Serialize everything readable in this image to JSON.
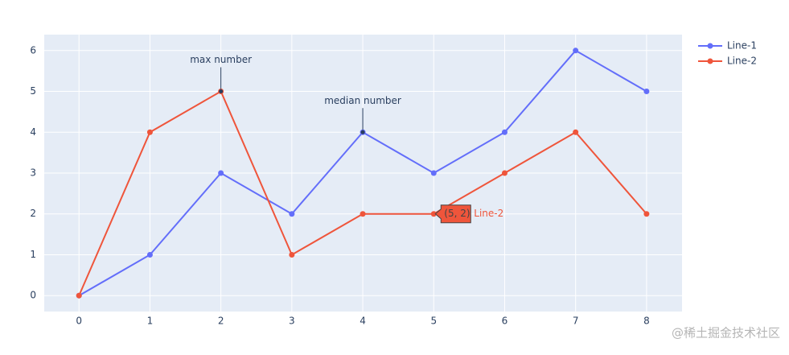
{
  "chart_data": {
    "type": "line",
    "x": [
      0,
      1,
      2,
      3,
      4,
      5,
      6,
      7,
      8
    ],
    "series": [
      {
        "name": "Line-1",
        "color": "#636efa",
        "values": [
          0,
          1,
          3,
          2,
          4,
          3,
          4,
          6,
          5
        ]
      },
      {
        "name": "Line-2",
        "color": "#ef553b",
        "values": [
          0,
          4,
          5,
          1,
          2,
          2,
          3,
          4,
          2
        ]
      }
    ],
    "xlim": [
      -0.49,
      8.5
    ],
    "ylim": [
      -0.39,
      6.39
    ],
    "xticks": [
      0,
      1,
      2,
      3,
      4,
      5,
      6,
      7,
      8
    ],
    "yticks": [
      0,
      1,
      2,
      3,
      4,
      5,
      6
    ],
    "grid": true,
    "legend": "top-right",
    "annotations": [
      {
        "text": "max number",
        "x": 2,
        "y": 5
      },
      {
        "text": "median number",
        "x": 4,
        "y": 4
      }
    ],
    "hover": {
      "text": "(5, 2)",
      "name": "Line-2",
      "x": 5,
      "y": 2,
      "series": 1
    },
    "watermark": "@稀土掘金技术社区"
  }
}
